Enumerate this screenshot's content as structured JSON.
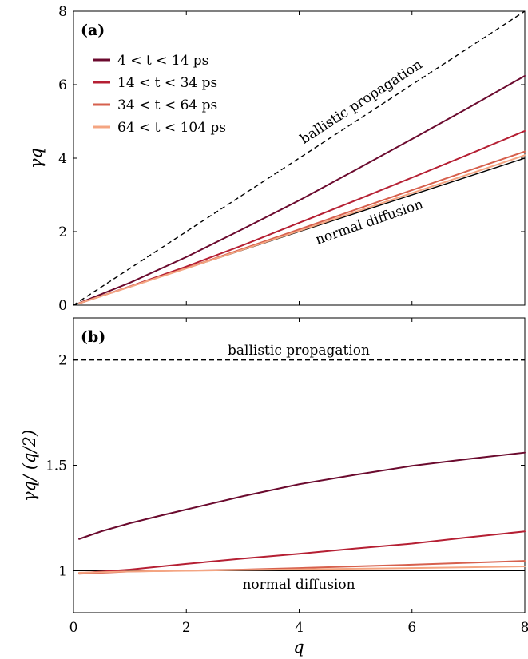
{
  "chart_data": [
    {
      "type": "line",
      "panel_label": "(a)",
      "xlabel": "",
      "ylabel": "γq",
      "xlim": [
        0,
        8
      ],
      "ylim": [
        0,
        8
      ],
      "xticks": [
        "",
        "",
        "",
        "",
        ""
      ],
      "yticks": [
        "0",
        "2",
        "4",
        "6",
        "8"
      ],
      "legend": {
        "position": "top-left"
      },
      "reference_lines": [
        {
          "name": "ballistic propagation",
          "style": "dashed",
          "color": "#000000",
          "x": [
            0,
            8
          ],
          "y": [
            0,
            8
          ]
        },
        {
          "name": "normal diffusion",
          "style": "solid",
          "color": "#000000",
          "x": [
            0,
            8
          ],
          "y": [
            0,
            4
          ]
        }
      ],
      "series": [
        {
          "name": "4 < t < 14 ps",
          "color": "#6b0a2e",
          "x": [
            0.1,
            1,
            2,
            3,
            4,
            5,
            6,
            7,
            8
          ],
          "y": [
            0.057,
            0.61,
            1.31,
            2.07,
            2.85,
            3.68,
            4.52,
            5.37,
            6.24
          ]
        },
        {
          "name": "14 < t < 34 ps",
          "color": "#b51f33",
          "x": [
            0.1,
            1,
            2,
            3,
            4,
            5,
            6,
            7,
            8
          ],
          "y": [
            0.049,
            0.51,
            1.05,
            1.63,
            2.24,
            2.85,
            3.47,
            4.1,
            4.74
          ]
        },
        {
          "name": "34 < t < 64 ps",
          "color": "#d6604d",
          "x": [
            0.1,
            1,
            2,
            3,
            4,
            5,
            6,
            7,
            8
          ],
          "y": [
            0.049,
            0.5,
            1.01,
            1.53,
            2.06,
            2.6,
            3.13,
            3.66,
            4.18
          ]
        },
        {
          "name": "64 < t < 104 ps",
          "color": "#f4a582",
          "x": [
            0.1,
            1,
            2,
            3,
            4,
            5,
            6,
            7,
            8
          ],
          "y": [
            0.05,
            0.5,
            1.0,
            1.51,
            2.02,
            2.54,
            3.05,
            3.56,
            4.08
          ]
        }
      ],
      "annotations": [
        {
          "text": "ballistic propagation"
        },
        {
          "text": "normal diffusion"
        }
      ]
    },
    {
      "type": "line",
      "panel_label": "(b)",
      "xlabel": "q",
      "ylabel": "γq/ (q/2)",
      "xlim": [
        0,
        8
      ],
      "ylim": [
        0.8,
        2.2
      ],
      "xticks": [
        "0",
        "2",
        "4",
        "6",
        "8"
      ],
      "yticks": [
        "1",
        "1.5",
        "2"
      ],
      "reference_lines": [
        {
          "name": "ballistic propagation",
          "style": "dashed",
          "color": "#000000",
          "x": [
            0,
            8
          ],
          "y": [
            2,
            2
          ]
        },
        {
          "name": "normal diffusion",
          "style": "solid",
          "color": "#000000",
          "x": [
            0,
            8
          ],
          "y": [
            1,
            1
          ]
        }
      ],
      "series": [
        {
          "name": "4 < t < 14 ps",
          "color": "#6b0a2e",
          "x": [
            0.1,
            0.5,
            1,
            1.5,
            2,
            3,
            4,
            5,
            6,
            7,
            8
          ],
          "y": [
            1.15,
            1.187,
            1.225,
            1.258,
            1.29,
            1.353,
            1.41,
            1.455,
            1.497,
            1.53,
            1.56
          ]
        },
        {
          "name": "14 < t < 34 ps",
          "color": "#b51f33",
          "x": [
            0.1,
            1,
            2,
            3,
            4,
            5,
            6,
            7,
            8
          ],
          "y": [
            0.988,
            1.005,
            1.032,
            1.057,
            1.08,
            1.105,
            1.128,
            1.158,
            1.186
          ]
        },
        {
          "name": "34 < t < 64 ps",
          "color": "#d6604d",
          "x": [
            0.1,
            1,
            2,
            3,
            4,
            5,
            6,
            7,
            8
          ],
          "y": [
            0.985,
            0.996,
            1.0,
            1.005,
            1.012,
            1.02,
            1.028,
            1.037,
            1.046
          ]
        },
        {
          "name": "64 < t < 104 ps",
          "color": "#f4a582",
          "x": [
            0.1,
            1,
            2,
            3,
            4,
            5,
            6,
            7,
            8
          ],
          "y": [
            0.99,
            0.996,
            0.999,
            1.003,
            1.006,
            1.009,
            1.012,
            1.016,
            1.02
          ]
        }
      ],
      "annotations": [
        {
          "text": "ballistic propagation"
        },
        {
          "text": "normal diffusion"
        }
      ]
    }
  ]
}
